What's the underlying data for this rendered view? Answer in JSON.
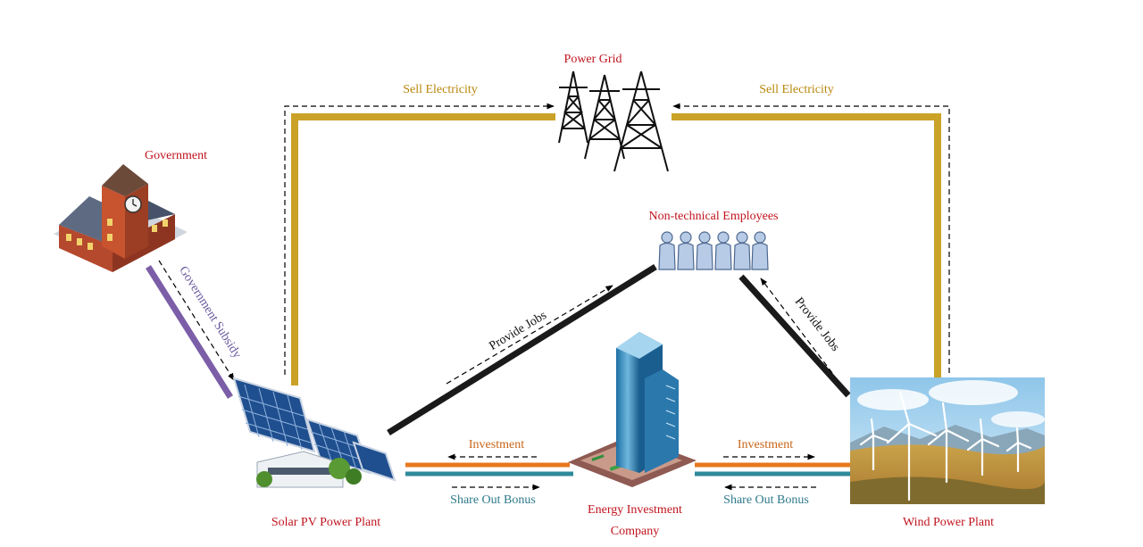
{
  "nodes": {
    "power_grid": "Power Grid",
    "government": "Government",
    "employees": "Non-technical Employees",
    "solar": "Solar PV Power Plant",
    "wind": "Wind Power Plant",
    "company_line1": "Energy Investment",
    "company_line2": "Company"
  },
  "edges": {
    "sell_left": "Sell Electricity",
    "sell_right": "Sell Electricity",
    "subsidy": "Government Subsidy",
    "jobs_left": "Provide Jobs",
    "jobs_right": "Provide Jobs",
    "invest_left": "Investment",
    "invest_right": "Investment",
    "bonus_left": "Share Out Bonus",
    "bonus_right": "Share Out Bonus"
  },
  "colors": {
    "node_label": "#c0141e",
    "sell_line": "#c9a227",
    "sell_text": "#b8860b",
    "subsidy_line": "#7b5ea7",
    "subsidy_text": "#6b5a9e",
    "jobs_line": "#1a1a1a",
    "invest_line": "#e8781e",
    "invest_text": "#c8661a",
    "bonus_line": "#2e8a99",
    "bonus_text": "#2e7a8a"
  }
}
